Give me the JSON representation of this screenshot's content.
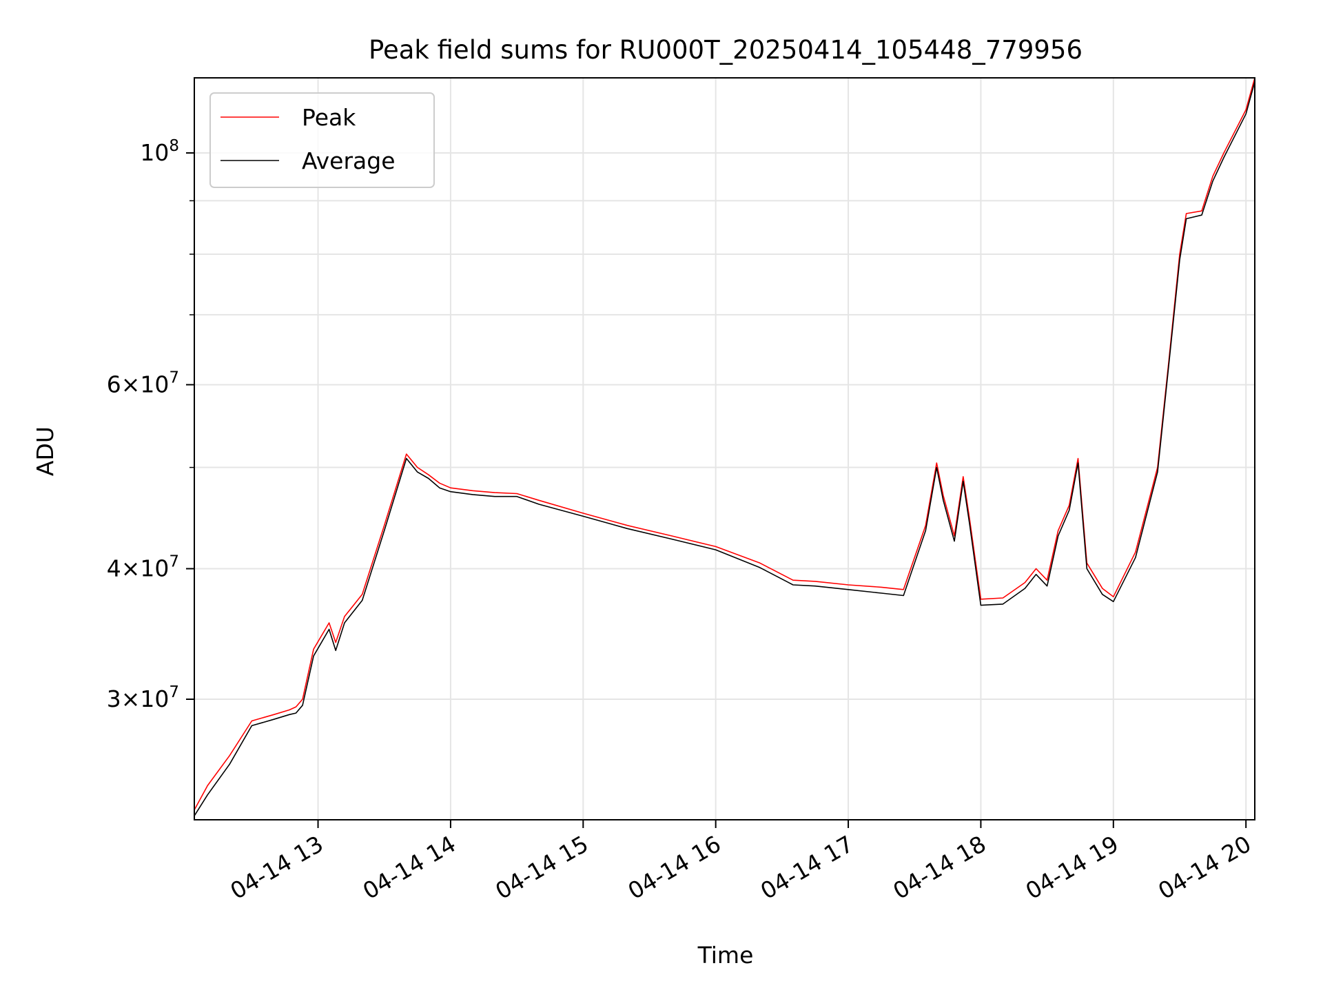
{
  "chart_data": {
    "type": "line",
    "title": "Peak field sums for RU000T_20250414_105448_779956",
    "xlabel": "Time",
    "ylabel": "ADU",
    "yscale": "log",
    "ylim": [
      23000000,
      118000000
    ],
    "xlim": [
      "2025-04-14 12:04",
      "2025-04-14 20:04"
    ],
    "x_ticks": [
      {
        "value": "2025-04-14 13:00",
        "label": "04-14 13"
      },
      {
        "value": "2025-04-14 14:00",
        "label": "04-14 14"
      },
      {
        "value": "2025-04-14 15:00",
        "label": "04-14 15"
      },
      {
        "value": "2025-04-14 16:00",
        "label": "04-14 16"
      },
      {
        "value": "2025-04-14 17:00",
        "label": "04-14 17"
      },
      {
        "value": "2025-04-14 18:00",
        "label": "04-14 18"
      },
      {
        "value": "2025-04-14 19:00",
        "label": "04-14 19"
      },
      {
        "value": "2025-04-14 20:00",
        "label": "04-14 20"
      }
    ],
    "y_ticks": [
      {
        "value": 30000000,
        "mantissa": "3",
        "exp": "7"
      },
      {
        "value": 40000000,
        "mantissa": "4",
        "exp": "7"
      },
      {
        "value": 60000000,
        "mantissa": "6",
        "exp": "7"
      },
      {
        "value": 100000000,
        "mantissa": "",
        "exp": "8"
      }
    ],
    "y_minor_ticks": [
      50000000,
      70000000,
      80000000,
      90000000
    ],
    "grid": true,
    "legend_position": "top-left",
    "series": [
      {
        "name": "Peak",
        "color": "#ff0000",
        "x": [
          "2025-04-14 12:04",
          "2025-04-14 12:10",
          "2025-04-14 12:20",
          "2025-04-14 12:30",
          "2025-04-14 12:40",
          "2025-04-14 12:47",
          "2025-04-14 12:50",
          "2025-04-14 12:53",
          "2025-04-14 12:58",
          "2025-04-14 13:05",
          "2025-04-14 13:08",
          "2025-04-14 13:12",
          "2025-04-14 13:20",
          "2025-04-14 13:30",
          "2025-04-14 13:40",
          "2025-04-14 13:45",
          "2025-04-14 13:50",
          "2025-04-14 13:55",
          "2025-04-14 14:00",
          "2025-04-14 14:10",
          "2025-04-14 14:20",
          "2025-04-14 14:30",
          "2025-04-14 14:40",
          "2025-04-14 15:00",
          "2025-04-14 15:20",
          "2025-04-14 15:40",
          "2025-04-14 16:00",
          "2025-04-14 16:20",
          "2025-04-14 16:35",
          "2025-04-14 16:45",
          "2025-04-14 17:00",
          "2025-04-14 17:15",
          "2025-04-14 17:25",
          "2025-04-14 17:35",
          "2025-04-14 17:40",
          "2025-04-14 17:43",
          "2025-04-14 17:48",
          "2025-04-14 17:52",
          "2025-04-14 17:55",
          "2025-04-14 18:00",
          "2025-04-14 18:10",
          "2025-04-14 18:20",
          "2025-04-14 18:25",
          "2025-04-14 18:30",
          "2025-04-14 18:35",
          "2025-04-14 18:40",
          "2025-04-14 18:44",
          "2025-04-14 18:48",
          "2025-04-14 18:55",
          "2025-04-14 19:00",
          "2025-04-14 19:10",
          "2025-04-14 19:20",
          "2025-04-14 19:25",
          "2025-04-14 19:30",
          "2025-04-14 19:33",
          "2025-04-14 19:40",
          "2025-04-14 19:45",
          "2025-04-14 19:50",
          "2025-04-14 20:00",
          "2025-04-14 20:04"
        ],
        "y": [
          23500000,
          24800000,
          26500000,
          28600000,
          29000000,
          29300000,
          29500000,
          30000000,
          33500000,
          35500000,
          34000000,
          36000000,
          37800000,
          44000000,
          51500000,
          50000000,
          49200000,
          48300000,
          47800000,
          47500000,
          47300000,
          47200000,
          46500000,
          45200000,
          44000000,
          43000000,
          42000000,
          40500000,
          39000000,
          38900000,
          38600000,
          38400000,
          38200000,
          44000000,
          50500000,
          47000000,
          43000000,
          49000000,
          44500000,
          37400000,
          37500000,
          38800000,
          40000000,
          39000000,
          43500000,
          46000000,
          51000000,
          40500000,
          38300000,
          37600000,
          41500000,
          50000000,
          63000000,
          80000000,
          87500000,
          88000000,
          95000000,
          100000000,
          110000000,
          118000000
        ]
      },
      {
        "name": "Average",
        "color": "#000000",
        "x": [
          "2025-04-14 12:04",
          "2025-04-14 12:10",
          "2025-04-14 12:20",
          "2025-04-14 12:30",
          "2025-04-14 12:40",
          "2025-04-14 12:47",
          "2025-04-14 12:50",
          "2025-04-14 12:53",
          "2025-04-14 12:58",
          "2025-04-14 13:05",
          "2025-04-14 13:08",
          "2025-04-14 13:12",
          "2025-04-14 13:20",
          "2025-04-14 13:30",
          "2025-04-14 13:40",
          "2025-04-14 13:45",
          "2025-04-14 13:50",
          "2025-04-14 13:55",
          "2025-04-14 14:00",
          "2025-04-14 14:10",
          "2025-04-14 14:20",
          "2025-04-14 14:30",
          "2025-04-14 14:40",
          "2025-04-14 15:00",
          "2025-04-14 15:20",
          "2025-04-14 15:40",
          "2025-04-14 16:00",
          "2025-04-14 16:20",
          "2025-04-14 16:35",
          "2025-04-14 16:45",
          "2025-04-14 17:00",
          "2025-04-14 17:15",
          "2025-04-14 17:25",
          "2025-04-14 17:35",
          "2025-04-14 17:40",
          "2025-04-14 17:43",
          "2025-04-14 17:48",
          "2025-04-14 17:52",
          "2025-04-14 17:55",
          "2025-04-14 18:00",
          "2025-04-14 18:10",
          "2025-04-14 18:20",
          "2025-04-14 18:25",
          "2025-04-14 18:30",
          "2025-04-14 18:35",
          "2025-04-14 18:40",
          "2025-04-14 18:44",
          "2025-04-14 18:48",
          "2025-04-14 18:55",
          "2025-04-14 19:00",
          "2025-04-14 19:10",
          "2025-04-14 19:20",
          "2025-04-14 19:25",
          "2025-04-14 19:30",
          "2025-04-14 19:33",
          "2025-04-14 19:40",
          "2025-04-14 19:45",
          "2025-04-14 19:50",
          "2025-04-14 20:00",
          "2025-04-14 20:04"
        ],
        "y": [
          23200000,
          24300000,
          26000000,
          28300000,
          28700000,
          29000000,
          29100000,
          29600000,
          33000000,
          35000000,
          33400000,
          35500000,
          37300000,
          43500000,
          51000000,
          49500000,
          48800000,
          47800000,
          47400000,
          47100000,
          46900000,
          46900000,
          46100000,
          44900000,
          43700000,
          42700000,
          41700000,
          40100000,
          38600000,
          38500000,
          38200000,
          37900000,
          37700000,
          43500000,
          50000000,
          46500000,
          42500000,
          48500000,
          44000000,
          36900000,
          37000000,
          38300000,
          39500000,
          38500000,
          43000000,
          45500000,
          50500000,
          40000000,
          37800000,
          37200000,
          41000000,
          49500000,
          62500000,
          79000000,
          86500000,
          87200000,
          94000000,
          99000000,
          109000000,
          117000000
        ]
      }
    ]
  }
}
